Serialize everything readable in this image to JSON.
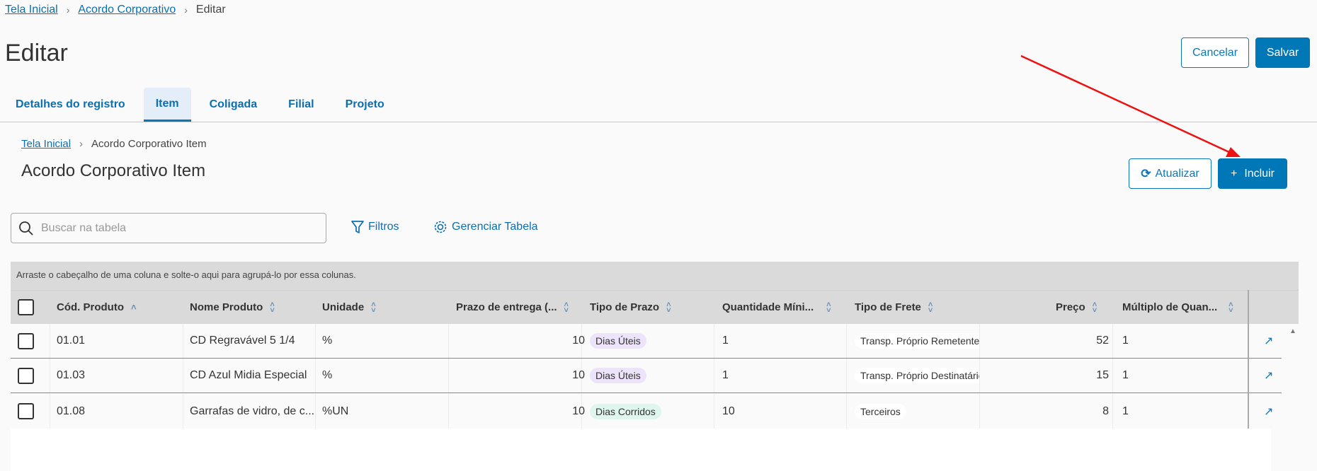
{
  "breadcrumb": [
    {
      "label": "Tela Inicial"
    },
    {
      "label": "Acordo Corporativo"
    },
    {
      "label": "Editar"
    }
  ],
  "page_title": "Editar",
  "actions": {
    "cancel": "Cancelar",
    "save": "Salvar"
  },
  "tabs": [
    {
      "label": "Detalhes do registro"
    },
    {
      "label": "Item",
      "active": true
    },
    {
      "label": "Coligada"
    },
    {
      "label": "Filial"
    },
    {
      "label": "Projeto"
    }
  ],
  "sub": {
    "breadcrumb": [
      {
        "label": "Tela Inicial"
      },
      {
        "label": "Acordo Corporativo Item"
      }
    ],
    "title": "Acordo Corporativo Item",
    "refresh": "Atualizar",
    "add": "Incluir",
    "add_icon": "+"
  },
  "toolbar": {
    "search_placeholder": "Buscar na tabela",
    "search_value": "",
    "filters": "Filtros",
    "manage": "Gerenciar Tabela"
  },
  "table": {
    "group_hint": "Arraste o cabeçalho de uma coluna e solte-o aqui para agrupá-lo por essa colunas.",
    "columns": [
      "Cód. Produto",
      "Nome Produto",
      "Unidade",
      "Prazo de entrega (...",
      "Tipo de Prazo",
      "Quantidade Míni...",
      "Tipo de Frete",
      "Preço",
      "Múltiplo de Quan..."
    ],
    "rows": [
      {
        "cod": "01.01",
        "nome": "CD Regravável 5 1/4",
        "unidade": "%",
        "prazo": "10",
        "tipo_prazo": "Dias Úteis",
        "qtd": "1",
        "frete": "Transp. Próprio Remetente",
        "preco": "52",
        "mult": "1"
      },
      {
        "cod": "01.03",
        "nome": "CD Azul Midia Especial",
        "unidade": "%",
        "prazo": "10",
        "tipo_prazo": "Dias Úteis",
        "qtd": "1",
        "frete": "Transp. Próprio Destinatário",
        "preco": "15",
        "mult": "1"
      },
      {
        "cod": "01.08",
        "nome": "Garrafas de vidro, de c...",
        "unidade": "%UN",
        "prazo": "10",
        "tipo_prazo": "Dias Corridos",
        "qtd": "10",
        "frete": "Terceiros",
        "preco": "8",
        "mult": "1"
      }
    ]
  },
  "colors": {
    "accent": "#0077b6",
    "pill_uteis": "#ede3fb",
    "pill_corridos": "#dff6ee",
    "annotation_arrow": "#ee1111"
  }
}
